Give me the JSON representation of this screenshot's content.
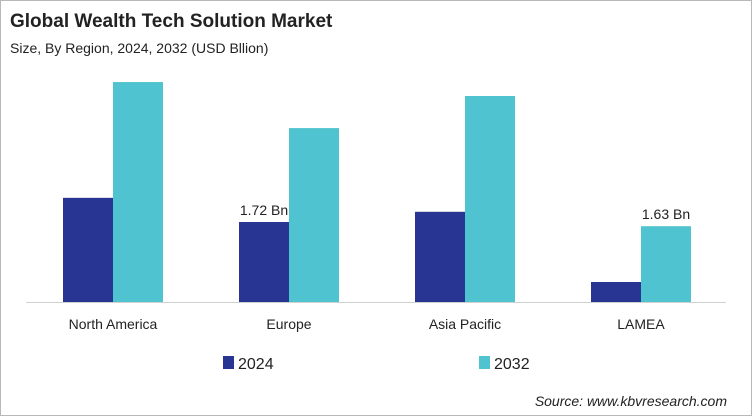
{
  "chart_data": {
    "type": "bar",
    "title": "Global Wealth Tech Solution Market",
    "subtitle": "Size, By Region, 2024, 2032 (USD Bllion)",
    "categories": [
      "North America",
      "Europe",
      "Asia Pacific",
      "LAMEA"
    ],
    "series": [
      {
        "name": "2024",
        "color": "#283593",
        "values": [
          2.24,
          1.72,
          1.94,
          0.43
        ],
        "labels": [
          "",
          "1.72 Bn",
          "",
          ""
        ]
      },
      {
        "name": "2032",
        "color": "#4fc3cf",
        "values": [
          4.73,
          3.74,
          4.43,
          1.63
        ],
        "labels": [
          "",
          "",
          "",
          "1.63 Bn"
        ]
      }
    ],
    "xlabel": "",
    "ylabel": "",
    "grid": false,
    "legend": "bottom",
    "source": "Source: www.kbvresearch.com"
  }
}
